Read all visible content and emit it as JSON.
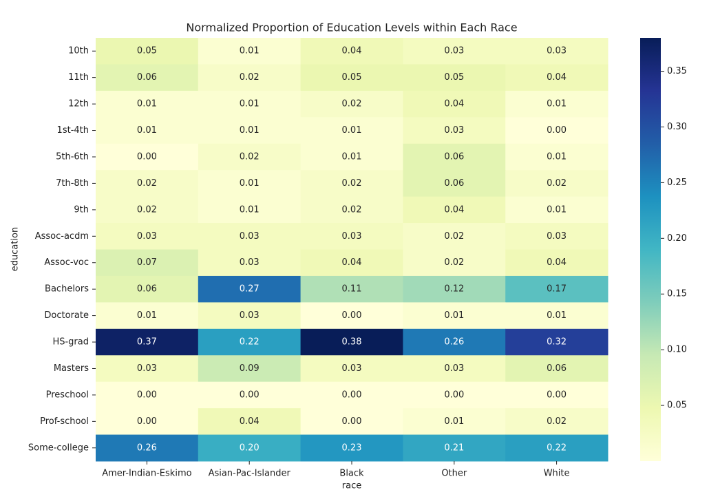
{
  "chart_data": {
    "type": "heatmap",
    "title": "Normalized Proportion of Education Levels within Each Race",
    "x_label": "race",
    "y_label": "education",
    "categories": [
      "Amer-Indian-Eskimo",
      "Asian-Pac-Islander",
      "Black",
      "Other",
      "White"
    ],
    "y_categories": [
      "10th",
      "11th",
      "12th",
      "1st-4th",
      "5th-6th",
      "7th-8th",
      "9th",
      "Assoc-acdm",
      "Assoc-voc",
      "Bachelors",
      "Doctorate",
      "HS-grad",
      "Masters",
      "Preschool",
      "Prof-school",
      "Some-college"
    ],
    "values": [
      [
        0.05,
        0.01,
        0.04,
        0.03,
        0.03
      ],
      [
        0.06,
        0.02,
        0.05,
        0.05,
        0.04
      ],
      [
        0.01,
        0.01,
        0.02,
        0.04,
        0.01
      ],
      [
        0.01,
        0.01,
        0.01,
        0.03,
        0
      ],
      [
        0,
        0.02,
        0.01,
        0.06,
        0.01
      ],
      [
        0.02,
        0.01,
        0.02,
        0.06,
        0.02
      ],
      [
        0.02,
        0.01,
        0.02,
        0.04,
        0.01
      ],
      [
        0.03,
        0.03,
        0.03,
        0.02,
        0.03
      ],
      [
        0.07,
        0.03,
        0.04,
        0.02,
        0.04
      ],
      [
        0.06,
        0.27,
        0.11,
        0.12,
        0.17
      ],
      [
        0.01,
        0.03,
        0,
        0.01,
        0.01
      ],
      [
        0.37,
        0.22,
        0.38,
        0.26,
        0.32
      ],
      [
        0.03,
        0.09,
        0.03,
        0.03,
        0.06
      ],
      [
        0,
        0,
        0,
        0,
        0
      ],
      [
        0,
        0.04,
        0,
        0.01,
        0.02
      ],
      [
        0.26,
        0.2,
        0.23,
        0.21,
        0.22
      ]
    ],
    "value_labels": [
      [
        "0.05",
        "0.01",
        "0.04",
        "0.03",
        "0.03"
      ],
      [
        "0.06",
        "0.02",
        "0.05",
        "0.05",
        "0.04"
      ],
      [
        "0.01",
        "0.01",
        "0.02",
        "0.04",
        "0.01"
      ],
      [
        "0.01",
        "0.01",
        "0.01",
        "0.03",
        "0.00"
      ],
      [
        "0.00",
        "0.02",
        "0.01",
        "0.06",
        "0.01"
      ],
      [
        "0.02",
        "0.01",
        "0.02",
        "0.06",
        "0.02"
      ],
      [
        "0.02",
        "0.01",
        "0.02",
        "0.04",
        "0.01"
      ],
      [
        "0.03",
        "0.03",
        "0.03",
        "0.02",
        "0.03"
      ],
      [
        "0.07",
        "0.03",
        "0.04",
        "0.02",
        "0.04"
      ],
      [
        "0.06",
        "0.27",
        "0.11",
        "0.12",
        "0.17"
      ],
      [
        "0.01",
        "0.03",
        "0.00",
        "0.01",
        "0.01"
      ],
      [
        "0.37",
        "0.22",
        "0.38",
        "0.26",
        "0.32"
      ],
      [
        "0.03",
        "0.09",
        "0.03",
        "0.03",
        "0.06"
      ],
      [
        "0.00",
        "0.00",
        "0.00",
        "0.00",
        "0.00"
      ],
      [
        "0.00",
        "0.04",
        "0.00",
        "0.01",
        "0.02"
      ],
      [
        "0.26",
        "0.20",
        "0.23",
        "0.21",
        "0.22"
      ]
    ],
    "colormap": "YlGnBu",
    "clim": [
      0,
      0.38
    ],
    "cticks": [
      0.05,
      {
        "value": 0.1,
        "label": "0.10"
      },
      0.15,
      {
        "value": 0.2,
        "label": "0.20"
      },
      0.25,
      {
        "value": 0.3,
        "label": "0.30"
      },
      0.35
    ]
  }
}
